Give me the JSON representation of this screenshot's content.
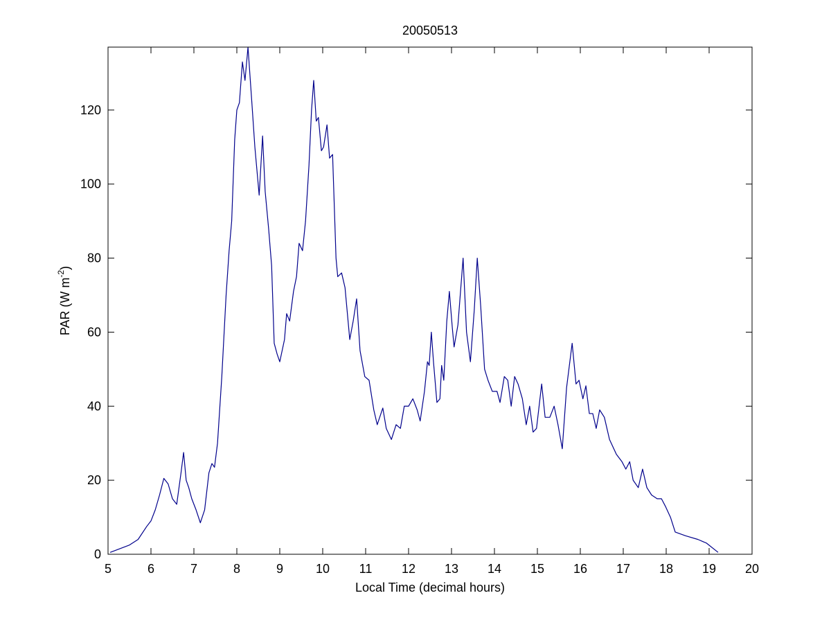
{
  "chart_data": {
    "type": "line",
    "title": "20050513",
    "xlabel": "Local Time (decimal hours)",
    "ylabel": {
      "text": "PAR (W m",
      "superscript": "-2",
      "suffix": ")"
    },
    "color": "#00008b",
    "xlim": [
      5,
      20
    ],
    "ylim": [
      0,
      137
    ],
    "xticks": [
      5,
      6,
      7,
      8,
      9,
      10,
      11,
      12,
      13,
      14,
      15,
      16,
      17,
      18,
      19,
      20
    ],
    "yticks": [
      0,
      20,
      40,
      60,
      80,
      100,
      120
    ],
    "grid": false,
    "x": [
      5.05,
      5.5,
      5.7,
      5.9,
      6.0,
      6.1,
      6.2,
      6.3,
      6.4,
      6.5,
      6.6,
      6.7,
      6.76,
      6.82,
      6.88,
      6.95,
      7.05,
      7.15,
      7.25,
      7.35,
      7.42,
      7.48,
      7.55,
      7.65,
      7.75,
      7.82,
      7.88,
      7.95,
      8.0,
      8.06,
      8.13,
      8.19,
      8.26,
      8.35,
      8.42,
      8.52,
      8.6,
      8.66,
      8.74,
      8.81,
      8.87,
      8.94,
      9.0,
      9.11,
      9.16,
      9.23,
      9.32,
      9.39,
      9.45,
      9.53,
      9.6,
      9.68,
      9.74,
      9.79,
      9.85,
      9.9,
      9.97,
      10.02,
      10.1,
      10.16,
      10.23,
      10.31,
      10.35,
      10.44,
      10.52,
      10.63,
      10.71,
      10.79,
      10.87,
      10.98,
      11.08,
      11.19,
      11.27,
      11.4,
      11.48,
      11.6,
      11.71,
      11.81,
      11.9,
      12.0,
      12.1,
      12.2,
      12.27,
      12.37,
      12.44,
      12.48,
      12.53,
      12.58,
      12.66,
      12.73,
      12.77,
      12.82,
      12.89,
      12.95,
      13.02,
      13.06,
      13.15,
      13.27,
      13.35,
      13.44,
      13.53,
      13.6,
      13.68,
      13.77,
      13.85,
      13.95,
      14.06,
      14.13,
      14.23,
      14.31,
      14.39,
      14.47,
      14.55,
      14.65,
      14.74,
      14.82,
      14.9,
      14.98,
      15.1,
      15.18,
      15.29,
      15.39,
      15.48,
      15.58,
      15.68,
      15.81,
      15.9,
      15.97,
      16.06,
      16.13,
      16.21,
      16.29,
      16.37,
      16.45,
      16.56,
      16.68,
      16.84,
      16.97,
      17.06,
      17.15,
      17.23,
      17.35,
      17.45,
      17.55,
      17.66,
      17.79,
      17.89,
      17.98,
      18.1,
      18.21,
      18.45,
      18.74,
      18.94,
      19.21
    ],
    "values": [
      0.5,
      2.5,
      4,
      7.5,
      9,
      12,
      16,
      20.5,
      19,
      15,
      13.5,
      22,
      27.5,
      20,
      18,
      15,
      12,
      8.5,
      12,
      22,
      24.5,
      23.5,
      30,
      48,
      70,
      82,
      90,
      112,
      120,
      122,
      133,
      128,
      137,
      122,
      110,
      97,
      113,
      98,
      88,
      78,
      57,
      54,
      52,
      58,
      65,
      63,
      71,
      75,
      84,
      82,
      90,
      105,
      120,
      128,
      117,
      118,
      109,
      110,
      116,
      107,
      108,
      80,
      75,
      76,
      72,
      58,
      63,
      69,
      55,
      48,
      47,
      39,
      35,
      39.5,
      34,
      31,
      35,
      34,
      40,
      40,
      42,
      39,
      36,
      44,
      52,
      51,
      60,
      52,
      41,
      42,
      51,
      47,
      63,
      71,
      61,
      56,
      62,
      80,
      60,
      52,
      66,
      80,
      67,
      50,
      47,
      44,
      44,
      41,
      48,
      47,
      40,
      48,
      46,
      42,
      35,
      40,
      33,
      34,
      46,
      37,
      37,
      40,
      35,
      28.5,
      45,
      57,
      46,
      47,
      42,
      45.5,
      38,
      38,
      34,
      39,
      37,
      31,
      27,
      25,
      23,
      25,
      20,
      18,
      23,
      18,
      16,
      15,
      15,
      13,
      10,
      6,
      5,
      4,
      3,
      0.5
    ]
  }
}
